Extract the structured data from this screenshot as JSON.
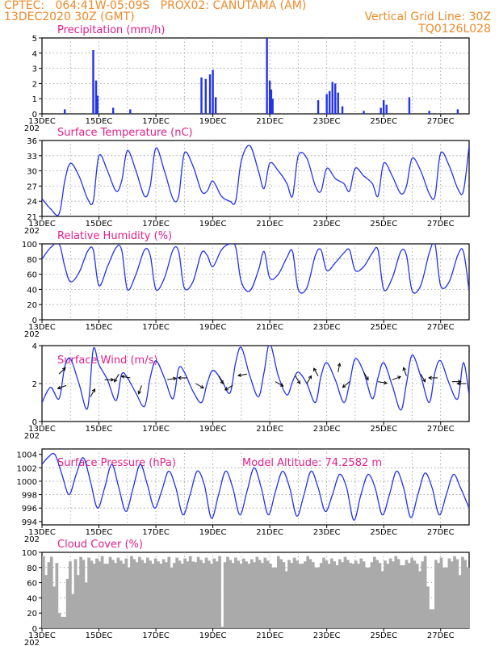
{
  "header": {
    "line1": "CPTEC:   064:41W-05:09S   PROX02: CANUTAMA (AM)",
    "line2_left": "13DEC2020 30Z (GMT)",
    "line2_right": "Vertical Grid Line: 30Z",
    "line3_right": "TQ0126L028"
  },
  "colors": {
    "header": "#ee8a2a",
    "title": "#e0208a",
    "series": "#2233ee",
    "cloud": "#aaaaaa",
    "grid": "#999999"
  },
  "x_ticks": [
    "13DEC",
    "15DEC",
    "17DEC",
    "19DEC",
    "21DEC",
    "23DEC",
    "25DEC",
    "27DEC"
  ],
  "x_tick_cut": "202",
  "chart_data": [
    {
      "type": "bar",
      "title": "Precipitation (mm/h)",
      "ylim": [
        0,
        5
      ],
      "yticks": [
        "0",
        "1",
        "2",
        "3",
        "4",
        "5"
      ],
      "events": [
        [
          0.8,
          0.3
        ],
        [
          1.8,
          4.2
        ],
        [
          1.9,
          2.2
        ],
        [
          1.95,
          1.2
        ],
        [
          2.5,
          0.4
        ],
        [
          3.1,
          0.3
        ],
        [
          5.6,
          2.4
        ],
        [
          5.75,
          2.3
        ],
        [
          5.9,
          2.6
        ],
        [
          6.0,
          2.9
        ],
        [
          6.1,
          1.1
        ],
        [
          7.9,
          5.0
        ],
        [
          8.0,
          2.2
        ],
        [
          8.05,
          1.6
        ],
        [
          8.1,
          1.0
        ],
        [
          9.7,
          0.9
        ],
        [
          10.0,
          1.3
        ],
        [
          10.1,
          1.5
        ],
        [
          10.2,
          2.1
        ],
        [
          10.3,
          2.0
        ],
        [
          10.4,
          1.4
        ],
        [
          10.55,
          0.5
        ],
        [
          11.3,
          0.2
        ],
        [
          11.9,
          0.4
        ],
        [
          12.0,
          0.9
        ],
        [
          12.1,
          0.6
        ],
        [
          12.9,
          1.1
        ],
        [
          13.6,
          0.2
        ],
        [
          14.6,
          0.3
        ]
      ]
    },
    {
      "type": "line",
      "title": "Surface Temperature (nC)",
      "ylim": [
        21,
        36
      ],
      "yticks": [
        "21",
        "24",
        "27",
        "30",
        "33",
        "36"
      ],
      "x": [
        0,
        0.3,
        0.6,
        0.8,
        1,
        1.3,
        1.6,
        1.8,
        2,
        2.3,
        2.6,
        2.8,
        3,
        3.3,
        3.6,
        3.8,
        4,
        4.3,
        4.6,
        4.8,
        5,
        5.3,
        5.6,
        5.8,
        6,
        6.3,
        6.6,
        6.8,
        7,
        7.3,
        7.6,
        7.8,
        8,
        8.3,
        8.6,
        8.8,
        9,
        9.3,
        9.6,
        9.8,
        10,
        10.3,
        10.6,
        10.8,
        11,
        11.3,
        11.6,
        11.8,
        12,
        12.3,
        12.6,
        12.8,
        13,
        13.3,
        13.6,
        13.8,
        14,
        14.3,
        14.6,
        14.8,
        15
      ],
      "y": [
        24.5,
        22.5,
        21.5,
        28,
        31.5,
        29,
        24.5,
        24,
        33,
        30,
        26,
        28,
        34,
        30,
        25,
        27,
        34.5,
        30,
        24.5,
        25,
        33.5,
        31,
        26,
        26,
        28,
        25,
        24,
        24,
        32,
        35,
        30,
        26.5,
        31.5,
        30,
        27.5,
        25,
        33,
        32.5,
        27,
        26,
        30.5,
        28.5,
        27.5,
        26,
        30.5,
        29,
        27.5,
        25,
        31.5,
        29,
        25.5,
        27,
        32.5,
        30,
        25.5,
        25,
        33.5,
        31,
        26.5,
        26,
        35
      ]
    },
    {
      "type": "line",
      "title": "Relative Humidity (%)",
      "ylim": [
        0,
        100
      ],
      "yticks": [
        "0",
        "20",
        "40",
        "60",
        "80",
        "100"
      ],
      "x": [
        0,
        0.3,
        0.6,
        0.8,
        1,
        1.3,
        1.6,
        1.8,
        2,
        2.3,
        2.6,
        2.8,
        3,
        3.3,
        3.6,
        3.8,
        4,
        4.3,
        4.6,
        4.8,
        5,
        5.3,
        5.6,
        5.8,
        6,
        6.3,
        6.6,
        6.8,
        7,
        7.3,
        7.6,
        7.8,
        8,
        8.3,
        8.6,
        8.8,
        9,
        9.3,
        9.6,
        9.8,
        10,
        10.3,
        10.6,
        10.8,
        11,
        11.3,
        11.6,
        11.8,
        12,
        12.3,
        12.6,
        12.8,
        13,
        13.3,
        13.6,
        13.8,
        14,
        14.3,
        14.6,
        14.8,
        15
      ],
      "y": [
        80,
        95,
        100,
        70,
        50,
        62,
        90,
        92,
        45,
        70,
        95,
        92,
        40,
        60,
        92,
        85,
        40,
        55,
        92,
        90,
        42,
        50,
        88,
        85,
        70,
        92,
        100,
        96,
        50,
        38,
        65,
        90,
        55,
        60,
        82,
        90,
        40,
        42,
        85,
        92,
        65,
        75,
        88,
        92,
        65,
        70,
        88,
        92,
        40,
        55,
        90,
        85,
        38,
        45,
        88,
        100,
        45,
        50,
        85,
        90,
        38
      ]
    },
    {
      "type": "line",
      "title": "Surface Wind (m/s)",
      "ylim": [
        0,
        4
      ],
      "yticks": [
        "0",
        "2",
        "4"
      ],
      "x": [
        0,
        0.3,
        0.6,
        0.8,
        1,
        1.3,
        1.6,
        1.8,
        2,
        2.3,
        2.6,
        2.8,
        3,
        3.3,
        3.6,
        3.8,
        4,
        4.3,
        4.6,
        4.8,
        5,
        5.3,
        5.6,
        5.8,
        6,
        6.3,
        6.6,
        6.8,
        7,
        7.3,
        7.6,
        7.8,
        8,
        8.3,
        8.6,
        8.8,
        9,
        9.3,
        9.6,
        9.8,
        10,
        10.3,
        10.6,
        10.8,
        11,
        11.3,
        11.6,
        11.8,
        12,
        12.3,
        12.6,
        12.8,
        13,
        13.3,
        13.6,
        13.8,
        14,
        14.3,
        14.6,
        14.8,
        15
      ],
      "y": [
        1.0,
        1.8,
        1.2,
        2.9,
        3.3,
        2.0,
        0.7,
        3.8,
        3.0,
        2.2,
        1.1,
        2.5,
        2.3,
        1.5,
        0.8,
        2.3,
        3.2,
        2.3,
        1.2,
        2.8,
        2.6,
        1.6,
        1.0,
        2.0,
        2.7,
        2.2,
        1.5,
        3.1,
        3.9,
        2.4,
        1.3,
        2.6,
        4.1,
        2.4,
        1.4,
        2.1,
        2.6,
        2.0,
        1.0,
        2.4,
        3.1,
        2.2,
        1.0,
        2.0,
        3.3,
        2.6,
        1.2,
        2.3,
        3.1,
        1.9,
        0.6,
        2.0,
        3.5,
        2.4,
        1.0,
        2.6,
        3.2,
        2.0,
        1.2,
        3.1,
        1.4
      ],
      "arrows": [
        [
          0.6,
          2.5,
          45
        ],
        [
          0.85,
          1.9,
          200
        ],
        [
          1.7,
          1.3,
          60
        ],
        [
          2.2,
          2.2,
          0
        ],
        [
          2.7,
          2.5,
          240
        ],
        [
          3.1,
          2.3,
          170
        ],
        [
          3.5,
          1.9,
          250
        ],
        [
          4.4,
          2.2,
          10
        ],
        [
          5.1,
          2.3,
          180
        ],
        [
          5.4,
          2.0,
          330
        ],
        [
          6.2,
          2.4,
          300
        ],
        [
          6.7,
          1.9,
          210
        ],
        [
          7.2,
          2.5,
          190
        ],
        [
          8.2,
          2.1,
          330
        ],
        [
          8.9,
          2.4,
          300
        ],
        [
          9.3,
          2.0,
          60
        ],
        [
          9.7,
          2.4,
          120
        ],
        [
          10.4,
          2.6,
          80
        ],
        [
          10.8,
          2.1,
          220
        ],
        [
          11.3,
          2.6,
          300
        ],
        [
          11.8,
          2.1,
          350
        ],
        [
          12.3,
          2.2,
          20
        ],
        [
          12.8,
          2.4,
          110
        ],
        [
          13.3,
          2.5,
          300
        ],
        [
          13.9,
          2.3,
          180
        ],
        [
          14.4,
          2.1,
          0
        ],
        [
          14.9,
          2.0,
          180
        ]
      ]
    },
    {
      "type": "line",
      "title": "Surface Pressure (hPa)",
      "subtitle": "Model Altitude: 74.2582 m",
      "ylim": [
        993.5,
        1004.8
      ],
      "yticks": [
        "994",
        "996",
        "998",
        "1000",
        "1002",
        "1004"
      ],
      "x": [
        0,
        0.2,
        0.45,
        0.7,
        0.95,
        1.2,
        1.45,
        1.7,
        1.95,
        2.2,
        2.45,
        2.7,
        2.95,
        3.2,
        3.45,
        3.7,
        3.95,
        4.2,
        4.45,
        4.7,
        4.95,
        5.2,
        5.45,
        5.7,
        5.95,
        6.2,
        6.45,
        6.7,
        6.95,
        7.2,
        7.45,
        7.7,
        7.95,
        8.2,
        8.45,
        8.7,
        8.95,
        9.2,
        9.45,
        9.7,
        9.95,
        10.2,
        10.45,
        10.7,
        10.95,
        11.2,
        11.45,
        11.7,
        11.95,
        12.2,
        12.45,
        12.7,
        12.95,
        13.2,
        13.45,
        13.7,
        13.95,
        14.2,
        14.45,
        14.7,
        15
      ],
      "y": [
        1002.5,
        1003.5,
        1004,
        1001,
        998,
        1001,
        1003.5,
        1000,
        996,
        999,
        1002.5,
        999,
        995.5,
        999,
        1002.5,
        999.5,
        996,
        998.5,
        1001.5,
        999,
        995,
        998,
        1001.5,
        999.5,
        994.5,
        998,
        1001.5,
        999,
        995,
        998.5,
        1002,
        999,
        995,
        998.5,
        1001.5,
        999,
        994.8,
        998,
        1001.5,
        999,
        995.5,
        998,
        1001,
        999,
        994.2,
        998,
        1001,
        999,
        995,
        998,
        1001.5,
        999,
        994.6,
        998,
        1001.2,
        999,
        995,
        998,
        1001,
        999,
        996
      ]
    },
    {
      "type": "bar",
      "title": "Cloud Cover (%)",
      "ylim": [
        0,
        100
      ],
      "yticks": [
        "0",
        "20",
        "40",
        "60",
        "80",
        "100"
      ],
      "base": 95,
      "dips": [
        [
          0.1,
          70
        ],
        [
          0.4,
          55
        ],
        [
          0.6,
          20
        ],
        [
          0.7,
          15
        ],
        [
          0.85,
          65
        ],
        [
          1.0,
          45
        ],
        [
          1.2,
          70
        ],
        [
          1.5,
          60
        ],
        [
          2.2,
          85
        ],
        [
          3.0,
          80
        ],
        [
          4.1,
          85
        ],
        [
          4.5,
          80
        ],
        [
          5.3,
          88
        ],
        [
          6.1,
          92
        ],
        [
          6.3,
          2
        ],
        [
          6.6,
          90
        ],
        [
          7.2,
          85
        ],
        [
          8.1,
          80
        ],
        [
          8.5,
          75
        ],
        [
          9.1,
          85
        ],
        [
          9.6,
          80
        ],
        [
          10.3,
          83
        ],
        [
          10.9,
          85
        ],
        [
          11.4,
          80
        ],
        [
          11.9,
          75
        ],
        [
          12.6,
          83
        ],
        [
          13.2,
          75
        ],
        [
          13.5,
          55
        ],
        [
          13.65,
          25
        ],
        [
          14.1,
          80
        ],
        [
          14.6,
          70
        ],
        [
          14.9,
          80
        ]
      ]
    }
  ]
}
